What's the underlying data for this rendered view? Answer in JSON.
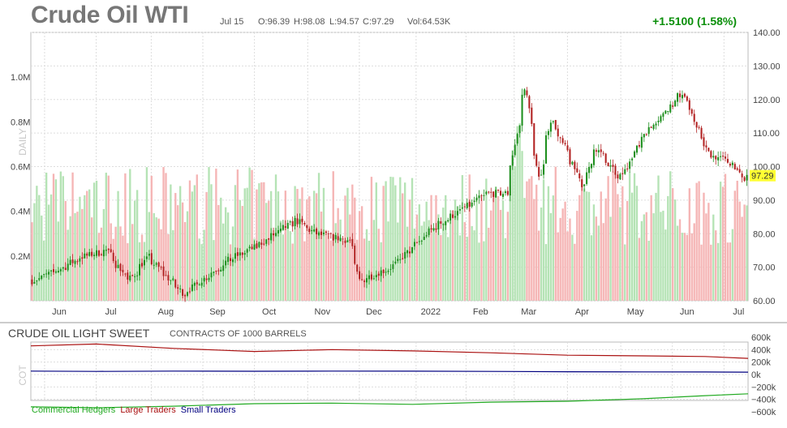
{
  "header": {
    "title": "Crude Oil WTI",
    "date": "Jul 15",
    "open": "O:96.39",
    "high": "H:98.08",
    "low": "L:94.57",
    "close": "C:97.29",
    "volume": "Vol:64.53K",
    "change": "+1.5100 (1.58%)"
  },
  "price_panel": {
    "side_label": "DAILY",
    "last_price_label": "97.29"
  },
  "cot_panel": {
    "title": "CRUDE OIL LIGHT SWEET",
    "subtitle": "CONTRACTS OF 1000 BARRELS",
    "side_label": "COT"
  },
  "colors": {
    "up": "#1e8f1e",
    "down": "#b22222",
    "vol_up": "#b5e3b5",
    "vol_down": "#f5b5b5",
    "commercial": "#22aa22",
    "large": "#aa1111",
    "small": "#000080",
    "highlight": "#ffff33",
    "change": "#0a8f0a"
  },
  "chart_data": [
    {
      "type": "candlestick",
      "title": "Crude Oil WTI",
      "x_ticks": [
        "Jun",
        "Jul",
        "Aug",
        "Sep",
        "Oct",
        "Nov",
        "Dec",
        "2022",
        "Feb",
        "Mar",
        "Apr",
        "May",
        "Jun",
        "Jul"
      ],
      "x_range": [
        "2021-05-24",
        "2022-07-15"
      ],
      "ylim": [
        60,
        140
      ],
      "y_ticks": [
        60,
        70,
        80,
        90,
        100,
        110,
        120,
        130,
        140
      ],
      "y_tick_labels": [
        "60.00",
        "70.00",
        "80.00",
        "90.00",
        "100.00",
        "110.00",
        "120.00",
        "130.00",
        "140.00"
      ],
      "last_close": 97.29,
      "grid": true,
      "close_series": {
        "x": [
          "2021-05-24",
          "2021-06-07",
          "2021-06-21",
          "2021-07-06",
          "2021-07-19",
          "2021-07-30",
          "2021-08-20",
          "2021-09-15",
          "2021-10-01",
          "2021-10-25",
          "2021-11-05",
          "2021-11-25",
          "2021-12-01",
          "2021-12-20",
          "2022-01-14",
          "2022-02-14",
          "2022-02-25",
          "2022-03-08",
          "2022-03-16",
          "2022-03-23",
          "2022-04-11",
          "2022-04-18",
          "2022-05-02",
          "2022-05-17",
          "2022-06-08",
          "2022-06-23",
          "2022-07-07",
          "2022-07-14",
          "2022-07-15"
        ],
        "y": [
          66,
          69,
          73,
          75,
          66,
          73,
          62,
          72,
          76,
          84,
          80,
          78,
          66,
          70,
          82,
          92,
          92,
          124,
          96,
          114,
          94,
          106,
          96,
          110,
          122,
          104,
          101,
          95.8,
          97.29
        ]
      }
    },
    {
      "type": "bar",
      "title": "Volume",
      "ylim": [
        0,
        1.2
      ],
      "y_ticks": [
        0.2,
        0.4,
        0.6,
        0.8,
        1.0
      ],
      "y_tick_labels": [
        "0.2M",
        "0.4M",
        "0.6M",
        "0.8M",
        "1.0M"
      ],
      "unit": "M"
    },
    {
      "type": "line",
      "title": "CRUDE OIL LIGHT SWEET",
      "subtitle": "CONTRACTS OF 1000 BARRELS",
      "ylim": [
        -600,
        600
      ],
      "y_ticks": [
        600,
        400,
        200,
        0,
        -200,
        -400,
        -600
      ],
      "y_tick_labels": [
        "600k",
        "400k",
        "200k",
        "0k",
        "−200k",
        "−400k",
        "−600k"
      ],
      "x_range": [
        "2021-05-24",
        "2022-07-15"
      ],
      "series": [
        {
          "name": "Commercial Hedgers",
          "x": [
            "2021-05-24",
            "2021-07-01",
            "2021-08-15",
            "2021-10-01",
            "2021-11-15",
            "2022-01-01",
            "2022-02-15",
            "2022-04-01",
            "2022-05-15",
            "2022-06-20",
            "2022-07-15"
          ],
          "values": [
            -520,
            -535,
            -510,
            -470,
            -460,
            -480,
            -445,
            -430,
            -390,
            -340,
            -310
          ]
        },
        {
          "name": "Large Traders",
          "x": [
            "2021-05-24",
            "2021-07-01",
            "2021-08-15",
            "2021-10-01",
            "2021-11-15",
            "2022-01-01",
            "2022-02-15",
            "2022-04-01",
            "2022-05-15",
            "2022-06-20",
            "2022-07-15"
          ],
          "values": [
            460,
            490,
            420,
            370,
            400,
            380,
            350,
            310,
            300,
            290,
            260
          ]
        },
        {
          "name": "Small Traders",
          "x": [
            "2021-05-24",
            "2021-07-01",
            "2021-08-15",
            "2021-10-01",
            "2021-11-15",
            "2022-01-01",
            "2022-02-15",
            "2022-04-01",
            "2022-05-15",
            "2022-06-20",
            "2022-07-15"
          ],
          "values": [
            55,
            50,
            55,
            52,
            55,
            53,
            50,
            45,
            42,
            40,
            38
          ]
        }
      ]
    }
  ]
}
